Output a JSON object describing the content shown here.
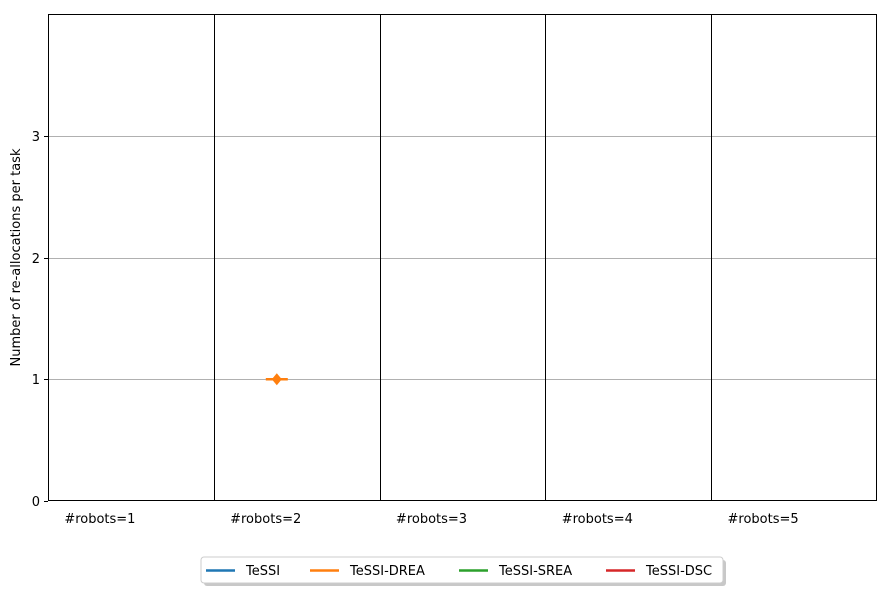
{
  "chart_data": {
    "type": "line",
    "title": "",
    "xlabel": "",
    "ylabel": "Number of re-allocations per task",
    "ylim": [
      0,
      4
    ],
    "yticks": [
      0,
      1,
      2,
      3
    ],
    "grid": "y",
    "legend_position": "bottom-center",
    "groups": [
      "#robots=1",
      "#robots=2",
      "#robots=3",
      "#robots=4",
      "#robots=5"
    ],
    "series": [
      {
        "name": "TeSSI",
        "color": "#1f77b4",
        "points": []
      },
      {
        "name": "TeSSI-DREA",
        "color": "#ff7f0e",
        "points": [
          {
            "group": "#robots=2",
            "value": 1
          }
        ]
      },
      {
        "name": "TeSSI-SREA",
        "color": "#2ca02c",
        "points": []
      },
      {
        "name": "TeSSI-DSC",
        "color": "#d62728",
        "points": []
      }
    ]
  }
}
